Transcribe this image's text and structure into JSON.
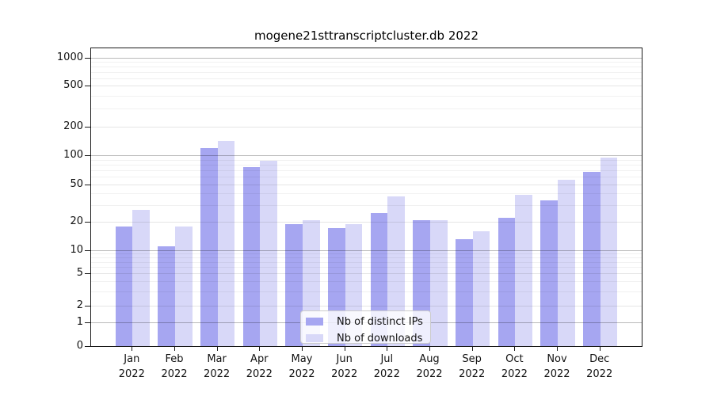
{
  "chart_data": {
    "type": "bar",
    "title": "mogene21sttranscriptcluster.db 2022",
    "categories": [
      "Jan",
      "Feb",
      "Mar",
      "Apr",
      "May",
      "Jun",
      "Jul",
      "Aug",
      "Sep",
      "Oct",
      "Nov",
      "Dec"
    ],
    "year_label": "2022",
    "series": [
      {
        "name": "Nb of distinct IPs",
        "color": "#a6a6f1",
        "values": [
          18,
          11,
          118,
          76,
          19,
          17,
          25,
          21,
          13,
          22,
          34,
          68
        ]
      },
      {
        "name": "Nb of downloads",
        "color": "#d8d8f8",
        "values": [
          27,
          18,
          142,
          88,
          21,
          19,
          37,
          21,
          16,
          39,
          56,
          95
        ]
      }
    ],
    "y_axis": {
      "tick_labels": [
        "0",
        "1",
        "2",
        "5",
        "10",
        "20",
        "50",
        "100",
        "200",
        "500",
        "1000"
      ],
      "tick_values": [
        0,
        1,
        2,
        5,
        10,
        20,
        50,
        100,
        200,
        500,
        1000
      ],
      "scale": "log-like",
      "range": [
        0,
        1000
      ]
    },
    "grid": true,
    "legend": {
      "position": "bottom-center-inside",
      "entries": [
        "Nb of distinct IPs",
        "Nb of downloads"
      ]
    }
  }
}
